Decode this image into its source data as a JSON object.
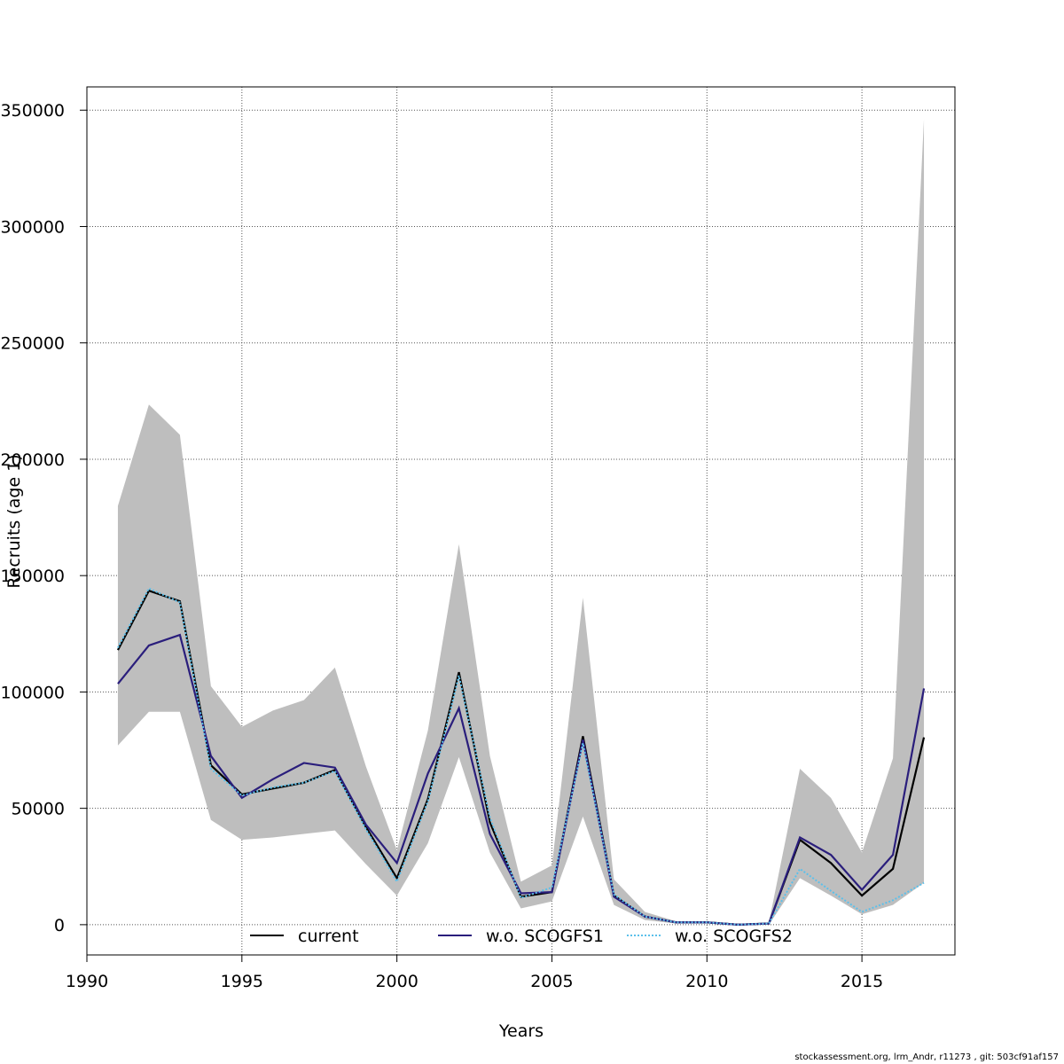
{
  "chart_data": {
    "type": "line",
    "xlabel": "Years",
    "ylabel": "Recruits (age 1)",
    "xlim": [
      1990,
      2018
    ],
    "ylim": [
      -13000,
      360000
    ],
    "grid": true,
    "legend_position": "bottom",
    "x_ticks": [
      1990,
      1995,
      2000,
      2005,
      2010,
      2015
    ],
    "y_ticks": [
      0,
      50000,
      100000,
      150000,
      200000,
      250000,
      300000,
      350000
    ],
    "x": [
      1991,
      1992,
      1993,
      1994,
      1995,
      1996,
      1997,
      1998,
      1999,
      2000,
      2001,
      2002,
      2003,
      2004,
      2005,
      2006,
      2007,
      2008,
      2009,
      2010,
      2011,
      2012,
      2013,
      2014,
      2015,
      2016,
      2017
    ],
    "confidence_band": {
      "color": "#bebebe",
      "lower": [
        77000,
        91500,
        91500,
        45000,
        36500,
        37500,
        39000,
        40500,
        26000,
        12500,
        35000,
        72000,
        31000,
        7000,
        10000,
        46500,
        8500,
        2000,
        500,
        500,
        0,
        0,
        20000,
        12500,
        4500,
        8500,
        18000
      ],
      "upper": [
        180000,
        223500,
        210500,
        102500,
        85000,
        92000,
        96500,
        110500,
        68000,
        32000,
        83500,
        163500,
        72500,
        18500,
        25500,
        140500,
        19500,
        5500,
        1500,
        1500,
        500,
        1000,
        67000,
        54500,
        31000,
        71500,
        346000
      ]
    },
    "series": [
      {
        "name": "current",
        "color": "#000000",
        "style": "solid",
        "values": [
          118000,
          143500,
          139000,
          68500,
          56000,
          58500,
          61000,
          66500,
          42000,
          20000,
          54000,
          108500,
          44000,
          12000,
          14000,
          81000,
          12500,
          3500,
          1000,
          1000,
          0,
          500,
          36500,
          26500,
          12500,
          24000,
          80500
        ]
      },
      {
        "name": "w.o. SCOGFS1",
        "color": "#2a1e7c",
        "style": "solid",
        "values": [
          103500,
          120000,
          124500,
          72500,
          54500,
          62500,
          69500,
          67500,
          43000,
          26500,
          65000,
          93000,
          39000,
          13500,
          14000,
          79500,
          12000,
          3500,
          1000,
          1000,
          0,
          500,
          37500,
          30000,
          15000,
          30000,
          101500
        ]
      },
      {
        "name": "w.o. SCOGFS2",
        "color": "#5bc0eb",
        "style": "dotted",
        "values": [
          119000,
          144500,
          138500,
          67000,
          55500,
          59000,
          61000,
          66000,
          41000,
          18500,
          53000,
          107000,
          46000,
          11500,
          16000,
          78000,
          13000,
          3500,
          1000,
          1000,
          0,
          500,
          24000,
          14500,
          5500,
          10500,
          18000
        ]
      }
    ]
  },
  "footer_text": "stockassessment.org, lrm_Andr, r11273 , git: 503cf91af157"
}
